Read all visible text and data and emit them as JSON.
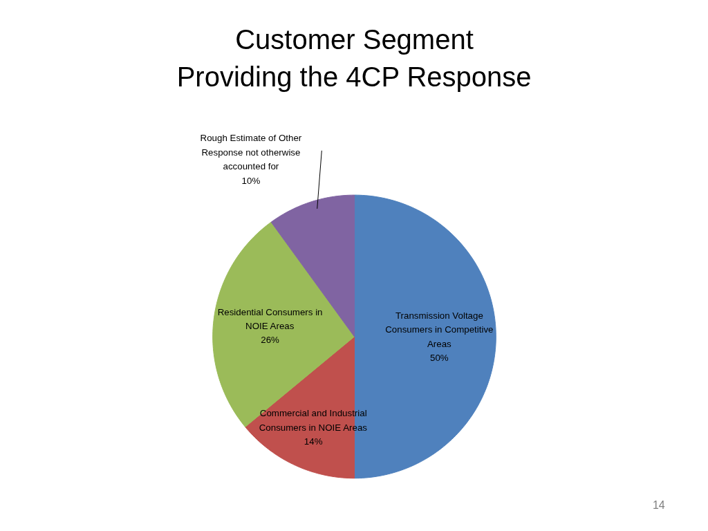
{
  "chart_data": {
    "type": "pie",
    "title": "Customer Segment",
    "subtitle": "Providing the 4CP Response",
    "categories": [
      "Transmission Voltage Consumers in Competitive Areas",
      "Commercial and Industrial Consumers in NOIE Areas",
      "Residential Consumers in NOIE Areas",
      "Rough Estimate of Other Response not otherwise accounted for"
    ],
    "values": [
      50,
      14,
      26,
      10
    ],
    "colors": [
      "#4f81bd",
      "#c0504d",
      "#9bbb59",
      "#8064a2"
    ],
    "value_labels": [
      "50%",
      "14%",
      "26%",
      "10%"
    ],
    "annotations": [
      "14"
    ],
    "legend": false
  }
}
